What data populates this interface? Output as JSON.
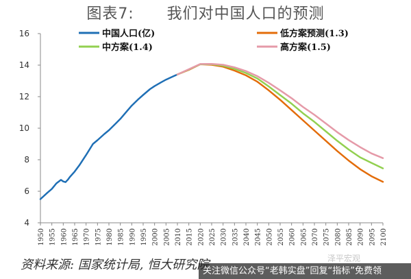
{
  "title": "图表7:      我们对中国人口的预测",
  "source": "资料来源: 国家统计局, 恒大研究院",
  "watermark": {
    "top_text": "泽平宏观",
    "bar_text": "关注微信公众号“老韩实盘”回复“指标”免费领"
  },
  "chart_data": {
    "type": "line",
    "title": "我们对中国人口的预测",
    "xlabel": "",
    "ylabel": "",
    "xlim": [
      1950,
      2100
    ],
    "ylim": [
      4,
      16
    ],
    "yticks": [
      4,
      6,
      8,
      10,
      12,
      14,
      16
    ],
    "xticks": [
      1950,
      1955,
      1960,
      1965,
      1970,
      1975,
      1980,
      1985,
      1990,
      1995,
      2000,
      2005,
      2010,
      2015,
      2020,
      2025,
      2030,
      2035,
      2040,
      2045,
      2050,
      2055,
      2060,
      2065,
      2070,
      2075,
      2080,
      2085,
      2090,
      2095,
      2100
    ],
    "grid": false,
    "legend_placement": "top",
    "series": [
      {
        "name": "中国人口(亿)",
        "color": "#1f6fb5",
        "x": [
          1950,
          1953,
          1955,
          1957,
          1959,
          1960,
          1961,
          1962,
          1963,
          1965,
          1967,
          1970,
          1973,
          1975,
          1978,
          1980,
          1983,
          1985,
          1988,
          1990,
          1993,
          1995,
          1998,
          2000,
          2003,
          2005,
          2008,
          2010
        ],
        "y": [
          5.5,
          5.9,
          6.15,
          6.5,
          6.72,
          6.62,
          6.58,
          6.73,
          6.92,
          7.25,
          7.64,
          8.3,
          9.0,
          9.24,
          9.63,
          9.87,
          10.3,
          10.59,
          11.1,
          11.43,
          11.85,
          12.11,
          12.48,
          12.67,
          12.92,
          13.08,
          13.28,
          13.41
        ]
      },
      {
        "name": "低方案预测(1.3)",
        "color": "#e36c09",
        "x": [
          2010,
          2015,
          2020,
          2025,
          2030,
          2035,
          2040,
          2045,
          2050,
          2055,
          2060,
          2065,
          2070,
          2075,
          2080,
          2085,
          2090,
          2095,
          2100
        ],
        "y": [
          13.41,
          13.7,
          14.05,
          14.02,
          13.9,
          13.65,
          13.35,
          12.95,
          12.4,
          11.8,
          11.15,
          10.5,
          9.85,
          9.2,
          8.55,
          7.95,
          7.4,
          6.95,
          6.6
        ]
      },
      {
        "name": "中方案(1.4)",
        "color": "#92d050",
        "x": [
          2010,
          2015,
          2020,
          2025,
          2030,
          2035,
          2040,
          2045,
          2050,
          2055,
          2060,
          2065,
          2070,
          2075,
          2080,
          2085,
          2090,
          2095,
          2100
        ],
        "y": [
          13.41,
          13.72,
          14.06,
          14.05,
          13.96,
          13.77,
          13.5,
          13.15,
          12.65,
          12.1,
          11.55,
          10.95,
          10.4,
          9.8,
          9.2,
          8.65,
          8.15,
          7.8,
          7.45
        ]
      },
      {
        "name": "高方案(1.5)",
        "color": "#e59aa8",
        "x": [
          2010,
          2015,
          2020,
          2025,
          2030,
          2035,
          2040,
          2045,
          2050,
          2055,
          2060,
          2065,
          2070,
          2075,
          2080,
          2085,
          2090,
          2095,
          2100
        ],
        "y": [
          13.41,
          13.74,
          14.07,
          14.08,
          14.02,
          13.86,
          13.62,
          13.3,
          12.88,
          12.4,
          11.9,
          11.35,
          10.85,
          10.3,
          9.75,
          9.25,
          8.8,
          8.4,
          8.1
        ]
      }
    ]
  }
}
